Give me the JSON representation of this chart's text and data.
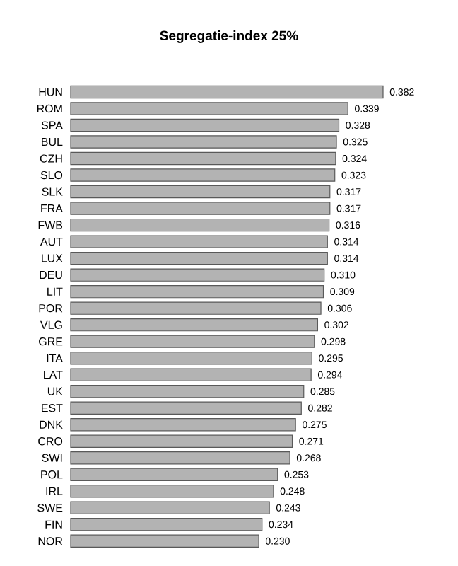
{
  "chart_data": {
    "type": "bar",
    "orientation": "horizontal",
    "title": "Segregatie-index 25%",
    "categories": [
      "HUN",
      "ROM",
      "SPA",
      "BUL",
      "CZH",
      "SLO",
      "SLK",
      "FRA",
      "FWB",
      "AUT",
      "LUX",
      "DEU",
      "LIT",
      "POR",
      "VLG",
      "GRE",
      "ITA",
      "LAT",
      "UK",
      "EST",
      "DNK",
      "CRO",
      "SWI",
      "POL",
      "IRL",
      "SWE",
      "FIN",
      "NOR"
    ],
    "values": [
      0.382,
      0.339,
      0.328,
      0.325,
      0.324,
      0.323,
      0.317,
      0.317,
      0.316,
      0.314,
      0.314,
      0.31,
      0.309,
      0.306,
      0.302,
      0.298,
      0.295,
      0.294,
      0.285,
      0.282,
      0.275,
      0.271,
      0.268,
      0.253,
      0.248,
      0.243,
      0.234,
      0.23
    ],
    "value_labels": [
      "0.382",
      "0.339",
      "0.328",
      "0.325",
      "0.324",
      "0.323",
      "0.317",
      "0.317",
      "0.316",
      "0.314",
      "0.314",
      "0.310",
      "0.309",
      "0.306",
      "0.302",
      "0.298",
      "0.295",
      "0.294",
      "0.285",
      "0.282",
      "0.275",
      "0.271",
      "0.268",
      "0.253",
      "0.248",
      "0.243",
      "0.234",
      "0.230"
    ],
    "color": "#b3b3b3"
  }
}
